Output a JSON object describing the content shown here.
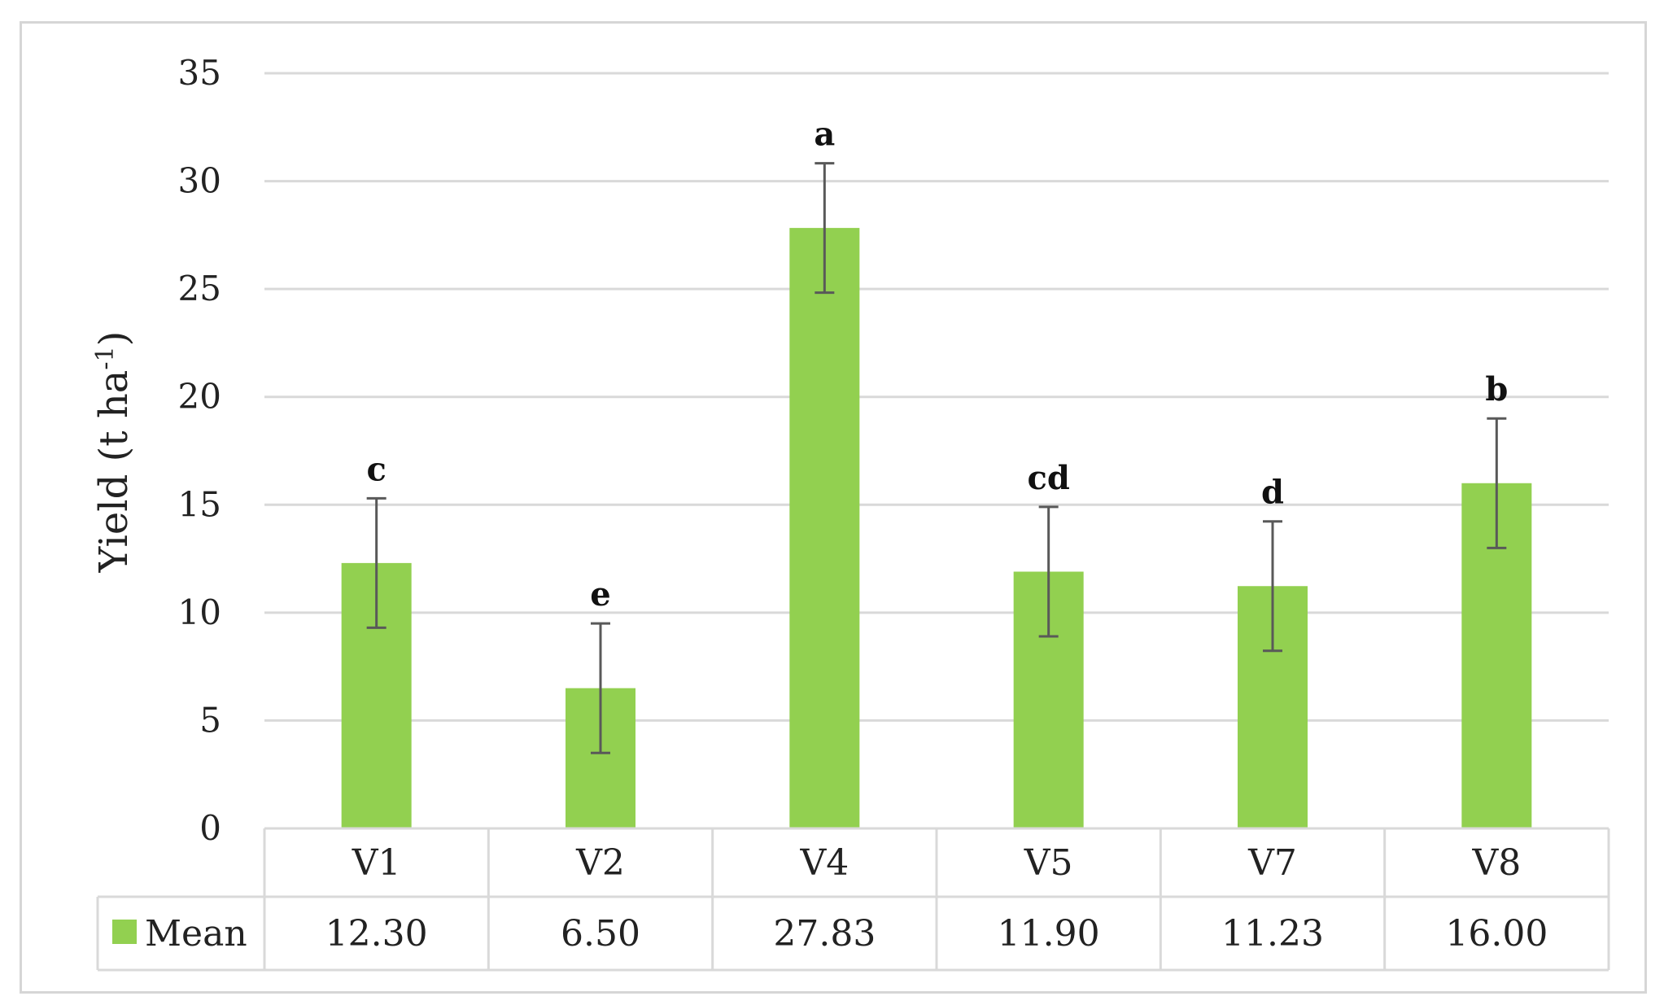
{
  "chart_data": {
    "type": "bar",
    "categories": [
      "V1",
      "V2",
      "V4",
      "V5",
      "V7",
      "V8"
    ],
    "series": [
      {
        "name": "Mean",
        "values": [
          12.3,
          6.5,
          27.83,
          11.9,
          11.23,
          16.0
        ],
        "value_labels": [
          "12.30",
          "6.50",
          "27.83",
          "11.90",
          "11.23",
          "16.00"
        ],
        "error": [
          3.0,
          3.0,
          3.0,
          3.0,
          3.0,
          3.0
        ],
        "significance": [
          "c",
          "e",
          "a",
          "cd",
          "d",
          "b"
        ],
        "color": "#92d050"
      }
    ],
    "ylabel_main": "Yield (t ha",
    "ylabel_sup": "-1",
    "ylabel_close": ")",
    "ylim": [
      0,
      35
    ],
    "yticks": [
      0,
      5,
      10,
      15,
      20,
      25,
      30,
      35
    ],
    "grid": true,
    "legend": "data-table",
    "gridline_color": "#d9d9d9",
    "error_bar_color": "#595959"
  }
}
